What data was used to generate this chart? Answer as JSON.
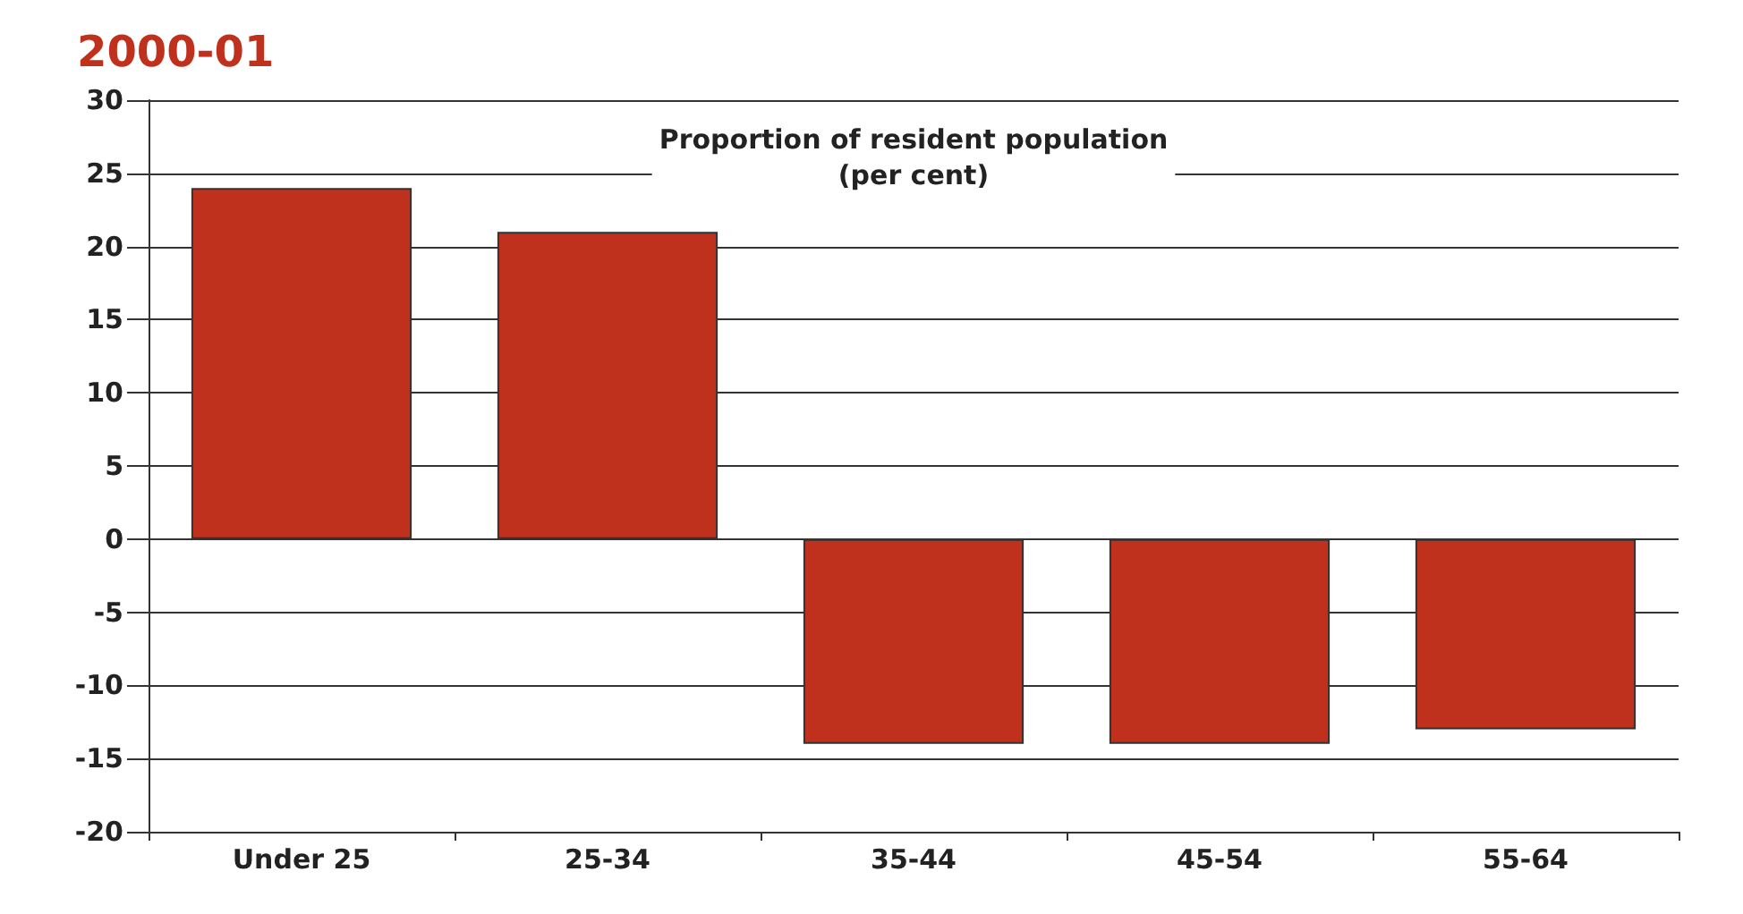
{
  "chart_data": {
    "type": "bar",
    "title": "2000-01",
    "annotations": [
      "Proportion of resident population\n(per cent)"
    ],
    "categories": [
      "Under 25",
      "25-34",
      "35-44",
      "45-54",
      "55-64"
    ],
    "values": [
      24,
      21,
      -14,
      -14,
      -13
    ],
    "color": "#bf311c",
    "ylim": [
      -20,
      30
    ],
    "yticks": [
      -20,
      -15,
      -10,
      -5,
      0,
      5,
      10,
      15,
      20,
      25,
      30
    ],
    "grid": "y"
  }
}
